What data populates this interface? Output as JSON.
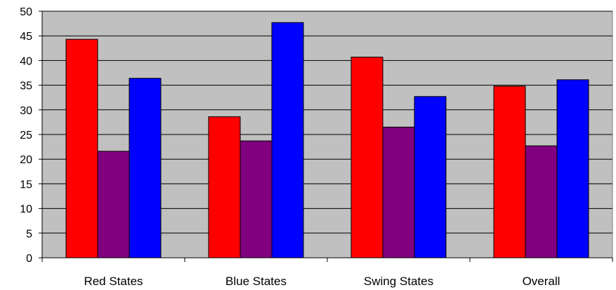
{
  "chart_data": {
    "type": "bar",
    "categories": [
      "Red States",
      "Blue States",
      "Swing States",
      "Overall"
    ],
    "series": [
      {
        "color": "#ff0000",
        "values": [
          44.3,
          28.6,
          40.7,
          34.8
        ]
      },
      {
        "color": "#800080",
        "values": [
          21.6,
          23.7,
          26.5,
          22.7
        ]
      },
      {
        "color": "#0000ff",
        "values": [
          36.4,
          47.7,
          32.7,
          36.1
        ]
      }
    ],
    "ylim": [
      0,
      50
    ],
    "yticks": [
      0,
      5,
      10,
      15,
      20,
      25,
      30,
      35,
      40,
      45,
      50
    ],
    "grid": true,
    "legend": "none",
    "title": "",
    "xlabel": "",
    "ylabel": "",
    "plot_background": "#c0c0c0"
  }
}
